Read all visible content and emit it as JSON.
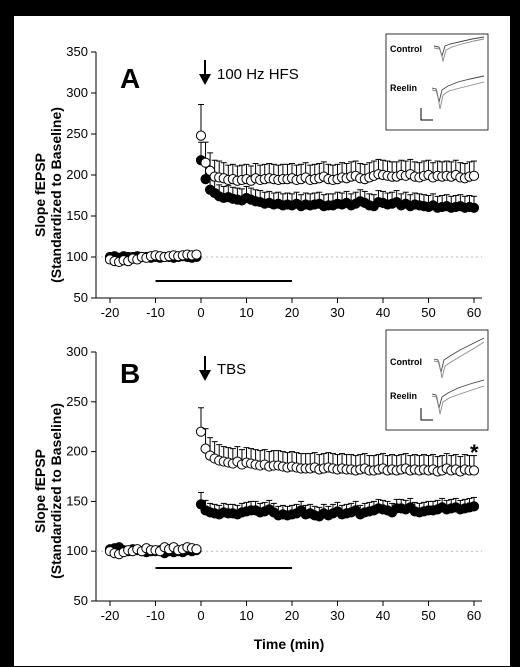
{
  "chart_data": [
    {
      "type": "scatter",
      "panel": "A",
      "stimulus": "100 Hz HFS",
      "ylabel_line1": "Slope fEPSP",
      "ylabel_line2": "(Standardized to Baseline)",
      "xlabel": "",
      "xlim": [
        -20,
        60
      ],
      "ylim": [
        50,
        350
      ],
      "xticks": [
        -20,
        -10,
        0,
        10,
        20,
        30,
        40,
        50,
        60
      ],
      "yticks": [
        50,
        100,
        150,
        200,
        250,
        300,
        350
      ],
      "baseline_y": 100,
      "bar_x": [
        -10,
        20
      ],
      "inset_labels": [
        "Control",
        "Reelin"
      ],
      "series": [
        {
          "style": "open",
          "x": [
            -20,
            -19,
            -18,
            -17,
            -16,
            -15,
            -14,
            -13,
            -12,
            -11,
            -10,
            -9,
            -8,
            -7,
            -6,
            -5,
            -4,
            -3,
            -2,
            -1,
            0,
            1,
            2,
            3,
            4,
            5,
            6,
            7,
            8,
            9,
            10,
            11,
            12,
            13,
            14,
            15,
            16,
            17,
            18,
            19,
            20,
            21,
            22,
            23,
            24,
            25,
            26,
            27,
            28,
            29,
            30,
            31,
            32,
            33,
            34,
            35,
            36,
            37,
            38,
            39,
            40,
            41,
            42,
            43,
            44,
            45,
            46,
            47,
            48,
            49,
            50,
            51,
            52,
            53,
            54,
            55,
            56,
            57,
            58,
            59,
            60
          ],
          "y": [
            97,
            95,
            94,
            96,
            95,
            98,
            97,
            100,
            99,
            101,
            102,
            101,
            100,
            101,
            102,
            101,
            102,
            103,
            102,
            103,
            248,
            215,
            205,
            198,
            197,
            196,
            194,
            195,
            193,
            194,
            195,
            193,
            196,
            194,
            195,
            196,
            195,
            194,
            195,
            195,
            196,
            194,
            195,
            197,
            194,
            195,
            196,
            198,
            195,
            194,
            195,
            197,
            196,
            198,
            199,
            196,
            195,
            197,
            199,
            201,
            200,
            199,
            198,
            198,
            200,
            199,
            201,
            198,
            197,
            199,
            200,
            197,
            199,
            198,
            199,
            198,
            200,
            197,
            196,
            198,
            199
          ],
          "err": [
            5,
            5,
            5,
            5,
            5,
            5,
            5,
            5,
            5,
            5,
            5,
            5,
            5,
            5,
            5,
            5,
            5,
            5,
            5,
            5,
            38,
            25,
            22,
            20,
            20,
            19,
            18,
            18,
            18,
            18,
            18,
            18,
            18,
            18,
            18,
            18,
            18,
            18,
            18,
            18,
            18,
            18,
            18,
            18,
            18,
            18,
            18,
            18,
            18,
            18,
            18,
            18,
            18,
            18,
            18,
            18,
            18,
            18,
            18,
            18,
            18,
            18,
            18,
            18,
            18,
            18,
            18,
            18,
            18,
            18,
            18,
            18,
            18,
            18,
            18,
            18,
            18,
            18,
            18,
            18,
            18
          ]
        },
        {
          "style": "filled",
          "x": [
            -20,
            -19,
            -18,
            -17,
            -16,
            -15,
            -14,
            -13,
            -12,
            -11,
            -10,
            -9,
            -8,
            -7,
            -6,
            -5,
            -4,
            -3,
            -2,
            -1,
            0,
            1,
            2,
            3,
            4,
            5,
            6,
            7,
            8,
            9,
            10,
            11,
            12,
            13,
            14,
            15,
            16,
            17,
            18,
            19,
            20,
            21,
            22,
            23,
            24,
            25,
            26,
            27,
            28,
            29,
            30,
            31,
            32,
            33,
            34,
            35,
            36,
            37,
            38,
            39,
            40,
            41,
            42,
            43,
            44,
            45,
            46,
            47,
            48,
            49,
            50,
            51,
            52,
            53,
            54,
            55,
            56,
            57,
            58,
            59,
            60
          ],
          "y": [
            100,
            101,
            99,
            101,
            100,
            100,
            101,
            100,
            100,
            99,
            100,
            99,
            100,
            100,
            99,
            100,
            101,
            100,
            99,
            100,
            218,
            195,
            182,
            178,
            174,
            172,
            173,
            171,
            170,
            169,
            172,
            170,
            168,
            167,
            165,
            166,
            164,
            165,
            163,
            164,
            163,
            165,
            162,
            164,
            163,
            164,
            165,
            162,
            163,
            163,
            165,
            164,
            166,
            163,
            165,
            168,
            166,
            163,
            162,
            167,
            166,
            164,
            165,
            167,
            163,
            165,
            162,
            164,
            163,
            162,
            161,
            163,
            160,
            161,
            162,
            160,
            161,
            162,
            160,
            161,
            160
          ],
          "err": [
            4,
            4,
            4,
            4,
            4,
            4,
            4,
            4,
            4,
            4,
            4,
            4,
            4,
            4,
            4,
            4,
            4,
            4,
            4,
            4,
            22,
            18,
            16,
            15,
            14,
            14,
            14,
            14,
            14,
            14,
            14,
            14,
            14,
            14,
            14,
            14,
            14,
            14,
            14,
            14,
            14,
            14,
            14,
            14,
            14,
            14,
            14,
            14,
            14,
            14,
            14,
            14,
            14,
            14,
            14,
            14,
            14,
            14,
            14,
            14,
            14,
            14,
            14,
            14,
            14,
            14,
            14,
            14,
            14,
            14,
            14,
            14,
            14,
            14,
            14,
            14,
            14,
            14,
            14,
            14,
            14
          ]
        }
      ]
    },
    {
      "type": "scatter",
      "panel": "B",
      "stimulus": "TBS",
      "ylabel_line1": "Slope fEPSP",
      "ylabel_line2": "(Standardized to Baseline)",
      "xlabel": "Time (min)",
      "xlim": [
        -20,
        60
      ],
      "ylim": [
        50,
        300
      ],
      "xticks": [
        -20,
        -10,
        0,
        10,
        20,
        30,
        40,
        50,
        60
      ],
      "yticks": [
        50,
        100,
        150,
        200,
        250,
        300
      ],
      "baseline_y": 100,
      "bar_x": [
        -10,
        20
      ],
      "inset_labels": [
        "Control",
        "Reelin"
      ],
      "significance_marker": "*",
      "series": [
        {
          "style": "open",
          "x": [
            -20,
            -19,
            -18,
            -17,
            -16,
            -15,
            -14,
            -13,
            -12,
            -11,
            -10,
            -9,
            -8,
            -7,
            -6,
            -5,
            -4,
            -3,
            -2,
            -1,
            0,
            1,
            2,
            3,
            4,
            5,
            6,
            7,
            8,
            9,
            10,
            11,
            12,
            13,
            14,
            15,
            16,
            17,
            18,
            19,
            20,
            21,
            22,
            23,
            24,
            25,
            26,
            27,
            28,
            29,
            30,
            31,
            32,
            33,
            34,
            35,
            36,
            37,
            38,
            39,
            40,
            41,
            42,
            43,
            44,
            45,
            46,
            47,
            48,
            49,
            50,
            51,
            52,
            53,
            54,
            55,
            56,
            57,
            58,
            59,
            60
          ],
          "y": [
            100,
            98,
            97,
            99,
            101,
            100,
            102,
            100,
            103,
            101,
            101,
            100,
            104,
            102,
            104,
            101,
            102,
            104,
            103,
            102,
            220,
            203,
            196,
            193,
            191,
            190,
            189,
            188,
            190,
            187,
            189,
            188,
            187,
            186,
            187,
            185,
            186,
            186,
            185,
            184,
            185,
            184,
            183,
            183,
            183,
            184,
            182,
            183,
            184,
            183,
            182,
            183,
            182,
            182,
            181,
            182,
            183,
            181,
            181,
            182,
            183,
            181,
            182,
            181,
            182,
            183,
            181,
            182,
            181,
            182,
            181,
            182,
            180,
            181,
            183,
            181,
            182,
            180,
            182,
            181,
            181
          ],
          "err": [
            8,
            8,
            8,
            8,
            8,
            8,
            8,
            8,
            8,
            8,
            8,
            8,
            8,
            8,
            8,
            8,
            8,
            8,
            8,
            8,
            24,
            20,
            18,
            17,
            16,
            15,
            15,
            15,
            15,
            15,
            15,
            15,
            15,
            15,
            15,
            15,
            15,
            15,
            15,
            15,
            15,
            15,
            15,
            15,
            15,
            15,
            15,
            15,
            15,
            15,
            15,
            15,
            15,
            15,
            15,
            15,
            15,
            15,
            15,
            15,
            15,
            15,
            15,
            15,
            15,
            15,
            15,
            15,
            15,
            15,
            15,
            15,
            15,
            15,
            15,
            15,
            15,
            15,
            15,
            15,
            15
          ]
        },
        {
          "style": "filled",
          "x": [
            -20,
            -19,
            -18,
            -17,
            -16,
            -15,
            -14,
            -13,
            -12,
            -11,
            -10,
            -9,
            -8,
            -7,
            -6,
            -5,
            -4,
            -3,
            -2,
            -1,
            0,
            1,
            2,
            3,
            4,
            5,
            6,
            7,
            8,
            9,
            10,
            11,
            12,
            13,
            14,
            15,
            16,
            17,
            18,
            19,
            20,
            21,
            22,
            23,
            24,
            25,
            26,
            27,
            28,
            29,
            30,
            31,
            32,
            33,
            34,
            35,
            36,
            37,
            38,
            39,
            40,
            41,
            42,
            43,
            44,
            45,
            46,
            47,
            48,
            49,
            50,
            51,
            52,
            53,
            54,
            55,
            56,
            57,
            58,
            59,
            60
          ],
          "y": [
            102,
            103,
            104,
            101,
            100,
            102,
            101,
            100,
            99,
            100,
            100,
            101,
            98,
            100,
            99,
            100,
            99,
            101,
            100,
            101,
            147,
            141,
            139,
            138,
            137,
            139,
            138,
            138,
            137,
            139,
            140,
            141,
            141,
            139,
            140,
            142,
            139,
            136,
            137,
            136,
            137,
            138,
            141,
            137,
            138,
            136,
            135,
            138,
            136,
            138,
            140,
            137,
            138,
            139,
            141,
            137,
            139,
            140,
            141,
            143,
            142,
            141,
            139,
            143,
            143,
            142,
            144,
            140,
            139,
            140,
            141,
            141,
            142,
            144,
            142,
            143,
            144,
            142,
            143,
            144,
            145
          ],
          "err": [
            6,
            6,
            6,
            6,
            6,
            6,
            6,
            6,
            6,
            6,
            6,
            6,
            6,
            6,
            6,
            6,
            6,
            6,
            6,
            6,
            12,
            10,
            9,
            9,
            9,
            9,
            9,
            9,
            9,
            9,
            9,
            9,
            9,
            9,
            9,
            9,
            9,
            9,
            9,
            9,
            9,
            9,
            9,
            9,
            9,
            9,
            9,
            9,
            9,
            9,
            9,
            9,
            9,
            9,
            9,
            9,
            9,
            9,
            9,
            9,
            9,
            9,
            9,
            9,
            9,
            9,
            9,
            9,
            9,
            9,
            9,
            9,
            9,
            9,
            9,
            9,
            9,
            9,
            9,
            9,
            9
          ]
        }
      ]
    }
  ]
}
